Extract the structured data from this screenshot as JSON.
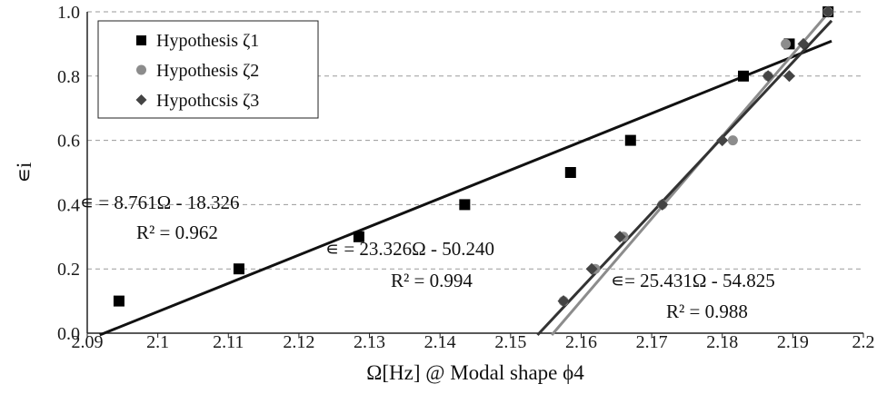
{
  "chart_data": {
    "type": "scatter",
    "xlabel": "Ω[Hz] @ Modal shape ϕ4",
    "ylabel": "∊i",
    "xlim": [
      2.09,
      2.2
    ],
    "ylim": [
      0.0,
      1.0
    ],
    "x_ticks": [
      "2.09",
      "2.1",
      "2.11",
      "2.12",
      "2.13",
      "2.14",
      "2.15",
      "2.16",
      "2.17",
      "2.18",
      "2.19",
      "2.2"
    ],
    "y_ticks": [
      "0.0",
      "0.2",
      "0.4",
      "0.6",
      "0.8",
      "1.0"
    ],
    "grid": "horizontal dashed",
    "legend_position": "top-left",
    "series": [
      {
        "name": "Hypothesis ζ1",
        "marker": "square",
        "color": "#000000",
        "points": [
          [
            2.0945,
            0.1
          ],
          [
            2.1115,
            0.2
          ],
          [
            2.1285,
            0.3
          ],
          [
            2.1435,
            0.4
          ],
          [
            2.1585,
            0.5
          ],
          [
            2.167,
            0.6
          ],
          [
            2.183,
            0.8
          ],
          [
            2.1895,
            0.9
          ],
          [
            2.195,
            1.0
          ]
        ]
      },
      {
        "name": "Hypothesis ζ2",
        "marker": "circle",
        "color": "#8c8c8c",
        "points": [
          [
            2.1575,
            0.1
          ],
          [
            2.162,
            0.2
          ],
          [
            2.166,
            0.3
          ],
          [
            2.1715,
            0.4
          ],
          [
            2.1815,
            0.6
          ],
          [
            2.1865,
            0.8
          ],
          [
            2.189,
            0.9
          ],
          [
            2.195,
            1.0
          ]
        ]
      },
      {
        "name": "Hypothcsis ζ3",
        "marker": "diamond",
        "color": "#444444",
        "points": [
          [
            2.1575,
            0.1
          ],
          [
            2.1615,
            0.2
          ],
          [
            2.1655,
            0.3
          ],
          [
            2.1715,
            0.4
          ],
          [
            2.18,
            0.6
          ],
          [
            2.1865,
            0.8
          ],
          [
            2.1895,
            0.8
          ],
          [
            2.1915,
            0.9
          ],
          [
            2.195,
            1.0
          ]
        ]
      }
    ],
    "trendlines": [
      {
        "series": "Hypothesis ζ1",
        "slope": 8.761,
        "intercept": -18.326,
        "color": "#111111",
        "x_range": [
          2.0915,
          2.1955
        ]
      },
      {
        "series": "Hypothesis ζ2",
        "slope": 25.431,
        "intercept": -54.825,
        "color": "#8c8c8c",
        "x_range": [
          2.1558,
          2.1955
        ]
      },
      {
        "series": "Hypothcsis ζ3",
        "slope": 23.326,
        "intercept": -50.24,
        "color": "#333333",
        "x_range": [
          2.1535,
          2.1955
        ]
      }
    ],
    "annotations": [
      {
        "line1": "∊ = 8.761Ω - 18.326",
        "line2": "R² = 0.962"
      },
      {
        "line1": "∊ = 23.326Ω - 50.240",
        "line2": "R² = 0.994"
      },
      {
        "line1": "∊= 25.431Ω - 54.825",
        "line2": "R² = 0.988"
      }
    ]
  }
}
